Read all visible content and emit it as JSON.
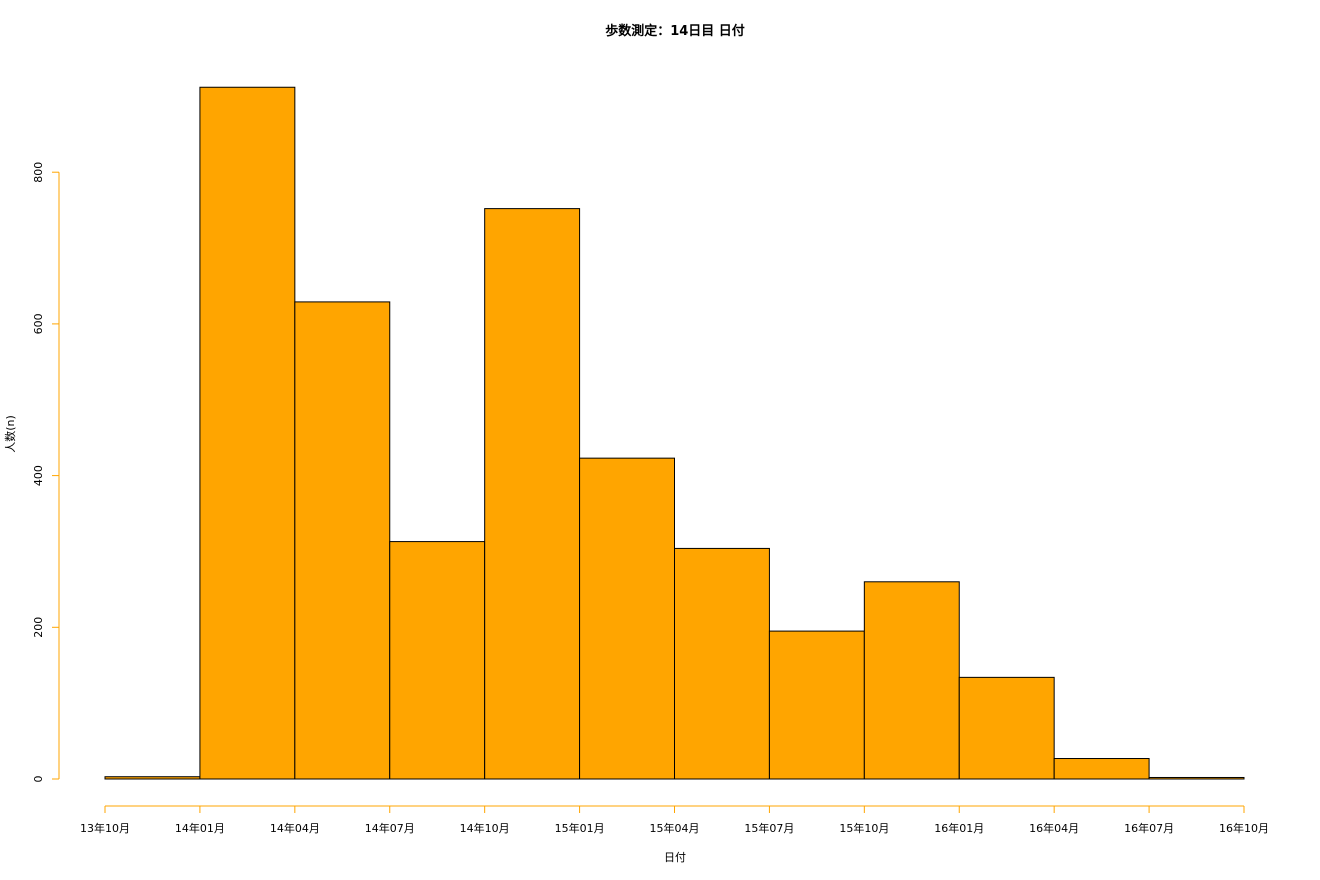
{
  "chart_data": {
    "type": "bar",
    "title": "歩数測定：14日目 日付",
    "xlabel": "日付",
    "ylabel": "人数(n)",
    "x_ticks": [
      "13年10月",
      "14年01月",
      "14年04月",
      "14年07月",
      "14年10月",
      "15年01月",
      "15年04月",
      "15年07月",
      "15年10月",
      "16年01月",
      "16年04月",
      "16年07月",
      "16年10月"
    ],
    "y_ticks": [
      0,
      200,
      400,
      600,
      800
    ],
    "ylim": [
      0,
      920
    ],
    "bins": [
      {
        "start": "13年10月",
        "end": "14年01月",
        "value": 3
      },
      {
        "start": "14年01月",
        "end": "14年04月",
        "value": 912
      },
      {
        "start": "14年04月",
        "end": "14年07月",
        "value": 629
      },
      {
        "start": "14年07月",
        "end": "14年10月",
        "value": 313
      },
      {
        "start": "14年10月",
        "end": "15年01月",
        "value": 752
      },
      {
        "start": "15年01月",
        "end": "15年04月",
        "value": 423
      },
      {
        "start": "15年04月",
        "end": "15年07月",
        "value": 304
      },
      {
        "start": "15年07月",
        "end": "15年10月",
        "value": 195
      },
      {
        "start": "15年10月",
        "end": "16年01月",
        "value": 260
      },
      {
        "start": "16年01月",
        "end": "16年04月",
        "value": 134
      },
      {
        "start": "16年04月",
        "end": "16年07月",
        "value": 27
      },
      {
        "start": "16年07月",
        "end": "16年10月",
        "value": 2
      }
    ],
    "bar_color": "#FFA500",
    "axis_color": "#FFA500",
    "grid": false
  }
}
